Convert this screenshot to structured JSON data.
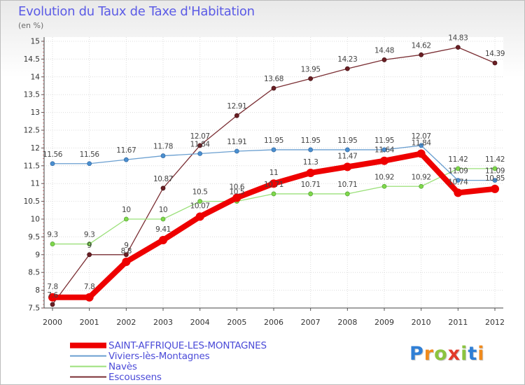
{
  "title": "Evolution du Taux de Taxe d'Habitation",
  "subtitle": "(en %)",
  "logo": {
    "text": "Proxiti",
    "letter_colors": [
      "#2f7fd6",
      "#f08a1c",
      "#8bc43f",
      "#e23a2a",
      "#8bc43f",
      "#2f7fd6",
      "#f08a1c"
    ]
  },
  "legend": [
    {
      "label": "SAINT-AFFRIQUE-LES-MONTAGNES",
      "color": "#ee0000"
    },
    {
      "label": "Viviers-lès-Montagnes",
      "color": "#6a9fd0"
    },
    {
      "label": "Navès",
      "color": "#9be07a"
    },
    {
      "label": "Escoussens",
      "color": "#7a2e33"
    }
  ],
  "chart_data": {
    "type": "line",
    "title": "Evolution du Taux de Taxe d'Habitation",
    "ylabel": "(en %)",
    "xlabel": "",
    "x": [
      "2000",
      "2001",
      "2002",
      "2003",
      "2004",
      "2005",
      "2006",
      "2007",
      "2008",
      "2009",
      "2010",
      "2011",
      "2012"
    ],
    "ylim": [
      7.5,
      15
    ],
    "yticks": [
      "7.5",
      "8",
      "8.5",
      "9",
      "9.5",
      "10",
      "10.5",
      "11",
      "11.5",
      "12",
      "12.5",
      "13",
      "13.5",
      "14",
      "14.5",
      "15"
    ],
    "grid": true,
    "series": [
      {
        "name": "SAINT-AFFRIQUE-LES-MONTAGNES",
        "color": "#ee0000",
        "values": [
          7.8,
          7.8,
          8.8,
          9.41,
          10.07,
          10.6,
          11,
          11.3,
          11.47,
          11.64,
          11.84,
          10.74,
          10.85
        ],
        "labels": [
          "7.8",
          "7.8",
          "8.8",
          "9.41",
          "10.07",
          "10.6",
          "11",
          "11.3",
          "11.47",
          "11.64",
          "11.84",
          "10.74",
          "10.85"
        ]
      },
      {
        "name": "Viviers-lès-Montagnes",
        "color": "#6a9fd0",
        "values": [
          11.56,
          11.56,
          11.67,
          11.78,
          11.84,
          11.91,
          11.95,
          11.95,
          11.95,
          11.95,
          12.07,
          11.09,
          11.09
        ],
        "labels": [
          "11.56",
          "11.56",
          "11.67",
          "11.78",
          "11.84",
          "11.91",
          "11.95",
          "11.95",
          "11.95",
          "11.95",
          "12.07",
          "11.09",
          "11.09"
        ]
      },
      {
        "name": "Navès",
        "color": "#9be07a",
        "values": [
          9.3,
          9.3,
          10,
          10,
          10.5,
          10.5,
          10.71,
          10.71,
          10.71,
          10.92,
          10.92,
          11.42,
          11.42
        ],
        "labels": [
          "9.3",
          "9.3",
          "10",
          "10",
          "10.5",
          "10.5",
          "10.71",
          "10.71",
          "10.71",
          "10.92",
          "10.92",
          "11.42",
          "11.42"
        ]
      },
      {
        "name": "Escoussens",
        "color": "#7a2e33",
        "values": [
          7.6,
          9,
          9,
          10.87,
          12.07,
          12.91,
          13.68,
          13.95,
          14.23,
          14.48,
          14.62,
          14.83,
          14.39
        ],
        "labels": [
          "7.6",
          "9",
          "9",
          "10.87",
          "12.07",
          "12.91",
          "13.68",
          "13.95",
          "14.23",
          "14.48",
          "14.62",
          "14.83",
          "14.39"
        ]
      }
    ]
  }
}
